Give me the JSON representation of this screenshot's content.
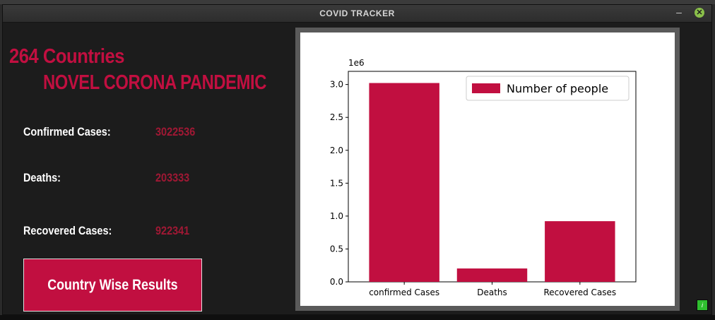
{
  "window": {
    "title": "COVID TRACKER",
    "minimize_glyph": "–",
    "close_glyph": "✕"
  },
  "left_panel": {
    "heading_line1": "264 Countries",
    "heading_line2": "NOVEL CORONA PANDEMIC",
    "stats": [
      {
        "label": "Confirmed Cases:",
        "value": "3022536"
      },
      {
        "label": "Deaths:",
        "value": "203333"
      },
      {
        "label": "Recovered Cases:",
        "value": "922341"
      }
    ],
    "button_label": "Country Wise Results"
  },
  "colors": {
    "accent": "#c10f40",
    "value_text": "#a01834",
    "bar": "#c10f40"
  },
  "status_icon": {
    "name": "info-icon",
    "glyph": "i"
  },
  "chart_data": {
    "type": "bar",
    "categories": [
      "confirmed Cases",
      "Deaths",
      "Recovered Cases"
    ],
    "series": [
      {
        "name": "Number of people",
        "values": [
          3022536,
          203333,
          922341
        ]
      }
    ],
    "ylim": [
      0,
      3200000.0
    ],
    "yticks": [
      0,
      0.5,
      1.0,
      1.5,
      2.0,
      2.5,
      3.0
    ],
    "ytick_labels": [
      "0.0",
      "0.5",
      "1.0",
      "1.5",
      "2.0",
      "2.5",
      "3.0"
    ],
    "y_scale_label": "1e6",
    "legend": "top-right",
    "grid": false
  }
}
